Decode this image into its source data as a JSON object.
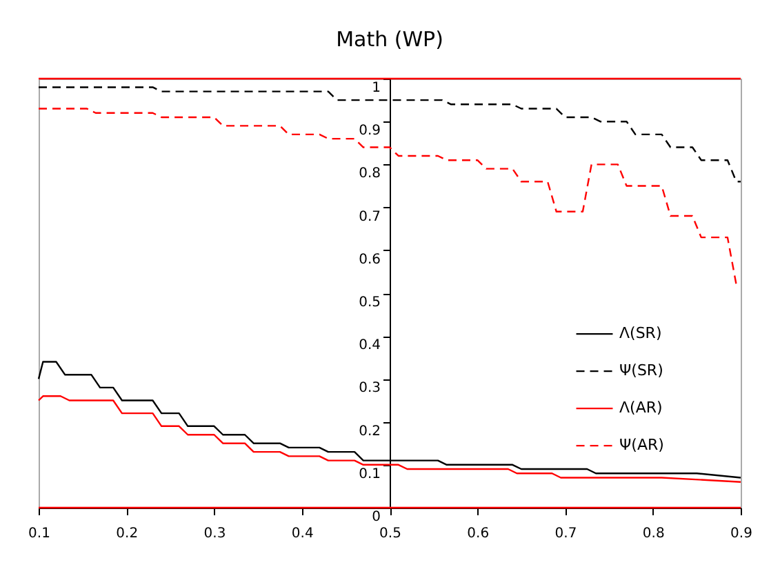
{
  "chart_data": {
    "type": "line",
    "title": "Math (WP)",
    "xlim": [
      0.1,
      0.9
    ],
    "xticks": [
      0.1,
      0.2,
      0.3,
      0.4,
      0.5,
      0.6,
      0.7,
      0.8,
      0.9
    ],
    "ylim": [
      0,
      1
    ],
    "yticks": [
      0,
      0.1,
      0.2,
      0.3,
      0.4,
      0.5,
      0.6,
      0.7,
      0.8,
      0.9,
      1
    ],
    "grid": false,
    "legend": "right",
    "ref_lines": [
      {
        "axis": "y",
        "value": 0,
        "color": "#ff0000"
      },
      {
        "axis": "y",
        "value": 1,
        "color": "#ff0000"
      }
    ],
    "series": [
      {
        "name": "Λ(SR)",
        "color": "#000000",
        "line_style": "solid",
        "x": [
          0.1,
          0.105,
          0.12,
          0.13,
          0.16,
          0.17,
          0.185,
          0.195,
          0.23,
          0.24,
          0.26,
          0.27,
          0.3,
          0.31,
          0.335,
          0.345,
          0.375,
          0.385,
          0.42,
          0.43,
          0.46,
          0.47,
          0.555,
          0.565,
          0.64,
          0.65,
          0.725,
          0.735,
          0.85,
          0.9
        ],
        "values": [
          0.3,
          0.34,
          0.34,
          0.31,
          0.31,
          0.28,
          0.28,
          0.25,
          0.25,
          0.22,
          0.22,
          0.19,
          0.19,
          0.17,
          0.17,
          0.15,
          0.15,
          0.14,
          0.14,
          0.13,
          0.13,
          0.11,
          0.11,
          0.1,
          0.1,
          0.09,
          0.09,
          0.08,
          0.08,
          0.07
        ]
      },
      {
        "name": "Ψ(SR)",
        "color": "#000000",
        "line_style": "dashed",
        "x": [
          0.1,
          0.23,
          0.24,
          0.43,
          0.44,
          0.56,
          0.57,
          0.64,
          0.65,
          0.69,
          0.7,
          0.73,
          0.74,
          0.77,
          0.78,
          0.81,
          0.82,
          0.845,
          0.855,
          0.885,
          0.895,
          0.9
        ],
        "values": [
          0.98,
          0.98,
          0.97,
          0.97,
          0.95,
          0.95,
          0.94,
          0.94,
          0.93,
          0.93,
          0.91,
          0.91,
          0.9,
          0.9,
          0.87,
          0.87,
          0.84,
          0.84,
          0.81,
          0.81,
          0.76,
          0.76
        ]
      },
      {
        "name": "Λ(AR)",
        "color": "#ff0000",
        "line_style": "solid",
        "x": [
          0.1,
          0.105,
          0.125,
          0.135,
          0.185,
          0.195,
          0.23,
          0.24,
          0.26,
          0.27,
          0.3,
          0.31,
          0.335,
          0.345,
          0.375,
          0.385,
          0.42,
          0.43,
          0.46,
          0.47,
          0.51,
          0.52,
          0.635,
          0.645,
          0.685,
          0.695,
          0.81,
          0.9
        ],
        "values": [
          0.25,
          0.26,
          0.26,
          0.25,
          0.25,
          0.22,
          0.22,
          0.19,
          0.19,
          0.17,
          0.17,
          0.15,
          0.15,
          0.13,
          0.13,
          0.12,
          0.12,
          0.11,
          0.11,
          0.1,
          0.1,
          0.09,
          0.09,
          0.08,
          0.08,
          0.07,
          0.07,
          0.06
        ]
      },
      {
        "name": "Ψ(AR)",
        "color": "#ff0000",
        "line_style": "dashed",
        "x": [
          0.1,
          0.155,
          0.165,
          0.23,
          0.24,
          0.3,
          0.31,
          0.375,
          0.385,
          0.42,
          0.43,
          0.46,
          0.47,
          0.5,
          0.51,
          0.555,
          0.565,
          0.6,
          0.61,
          0.64,
          0.65,
          0.68,
          0.69,
          0.72,
          0.73,
          0.76,
          0.77,
          0.81,
          0.82,
          0.845,
          0.855,
          0.885,
          0.895,
          0.9
        ],
        "values": [
          0.93,
          0.93,
          0.92,
          0.92,
          0.91,
          0.91,
          0.89,
          0.89,
          0.87,
          0.87,
          0.86,
          0.86,
          0.84,
          0.84,
          0.82,
          0.82,
          0.81,
          0.81,
          0.79,
          0.79,
          0.76,
          0.76,
          0.69,
          0.69,
          0.8,
          0.8,
          0.75,
          0.75,
          0.68,
          0.68,
          0.63,
          0.63,
          0.52,
          0.52
        ]
      }
    ]
  }
}
